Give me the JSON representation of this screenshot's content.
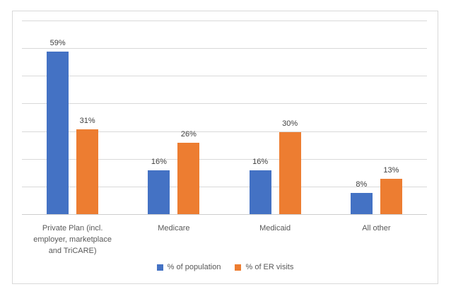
{
  "chart_data": {
    "type": "bar",
    "title": "",
    "categories": [
      "Private Plan (incl. employer, marketplace and TriCARE)",
      "Medicare",
      "Medicaid",
      "All other"
    ],
    "series": [
      {
        "name": "% of population",
        "color": "#4472C4",
        "values": [
          59,
          16,
          16,
          8
        ]
      },
      {
        "name": "% of ER visits",
        "color": "#ED7D31",
        "values": [
          31,
          26,
          30,
          13
        ]
      }
    ],
    "data_labels": {
      "% of population": [
        "59%",
        "16%",
        "16%",
        "8%"
      ],
      "% of ER visits": [
        "31%",
        "26%",
        "30%",
        "13%"
      ]
    },
    "data_label_suffix": "%",
    "ylim": [
      0,
      70
    ],
    "gridline_step": 10,
    "grid": true,
    "y_axis_tick_labels_visible": false,
    "legend_position": "bottom"
  },
  "colors": {
    "bar_blue": "#4472C4",
    "bar_orange": "#ED7D31",
    "gridline": "#D9D9D9",
    "axis_line": "#CDCDCD",
    "frame_border": "#D9D9D9",
    "data_label_text": "#404040",
    "category_text": "#595959",
    "legend_text": "#595959",
    "background": "#FFFFFF"
  }
}
